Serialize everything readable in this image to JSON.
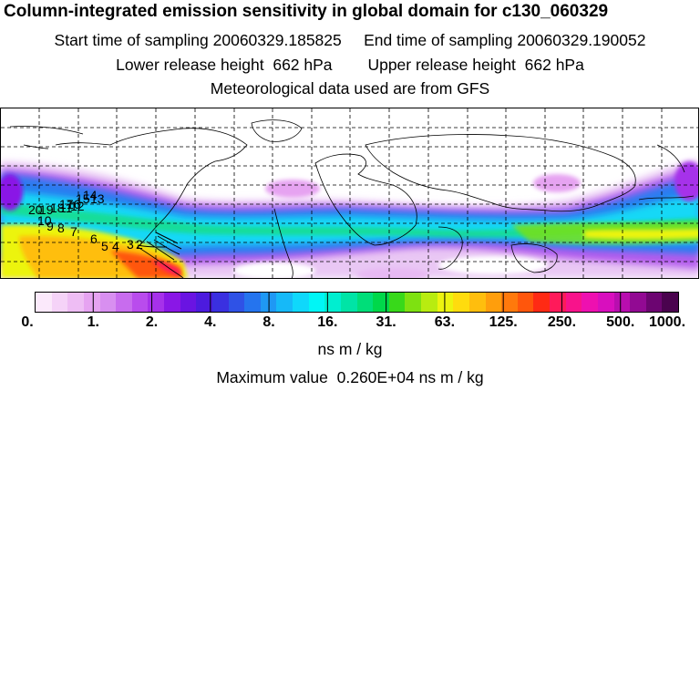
{
  "header": {
    "title": "Column-integrated emission sensitivity in global domain for c130_060329",
    "start_label": "Start time of sampling 20060329.185825",
    "end_label": "End time of sampling 20060329.190052",
    "lower_release": "Lower release height  662 hPa",
    "upper_release": "Upper release height  662 hPa",
    "met_data": "Meteorological data used are from GFS"
  },
  "map": {
    "projection": "global lat-lon",
    "day_labels": [
      "20",
      "19",
      "18",
      "17",
      "16",
      "15",
      "14",
      "13",
      "12",
      "11",
      "10",
      "9",
      "8",
      "7",
      "6",
      "5",
      "4",
      "3",
      "2"
    ]
  },
  "colorbar": {
    "colors": [
      "#fbe9fb",
      "#f5d3f8",
      "#eebdf4",
      "#e6a3f1",
      "#d88ff0",
      "#c86cee",
      "#b94ced",
      "#a631ea",
      "#8a17e6",
      "#6a14e2",
      "#4c1bde",
      "#3a30e0",
      "#2f52e6",
      "#2574ee",
      "#1f98f4",
      "#16b9f8",
      "#0fd8fb",
      "#00f6f6",
      "#00eed0",
      "#00e4a6",
      "#00de79",
      "#00d84a",
      "#38d91a",
      "#7ee111",
      "#b8ec10",
      "#ecf40f",
      "#ffdc0e",
      "#ffbe0d",
      "#ff9e0c",
      "#ff790c",
      "#ff560c",
      "#ff2a14",
      "#ff1a5a",
      "#f8138b",
      "#ee10b0",
      "#d80fbe",
      "#b80eaf",
      "#920a93",
      "#6c0571",
      "#4a034e"
    ],
    "tick_labels": [
      "0.",
      "1.",
      "2.",
      "4.",
      "8.",
      "16.",
      "31.",
      "63.",
      "125.",
      "250.",
      "500.",
      "1000."
    ],
    "units": "ns m / kg"
  },
  "footer": {
    "max_value": "Maximum value  0.260E+04 ns m / kg"
  }
}
